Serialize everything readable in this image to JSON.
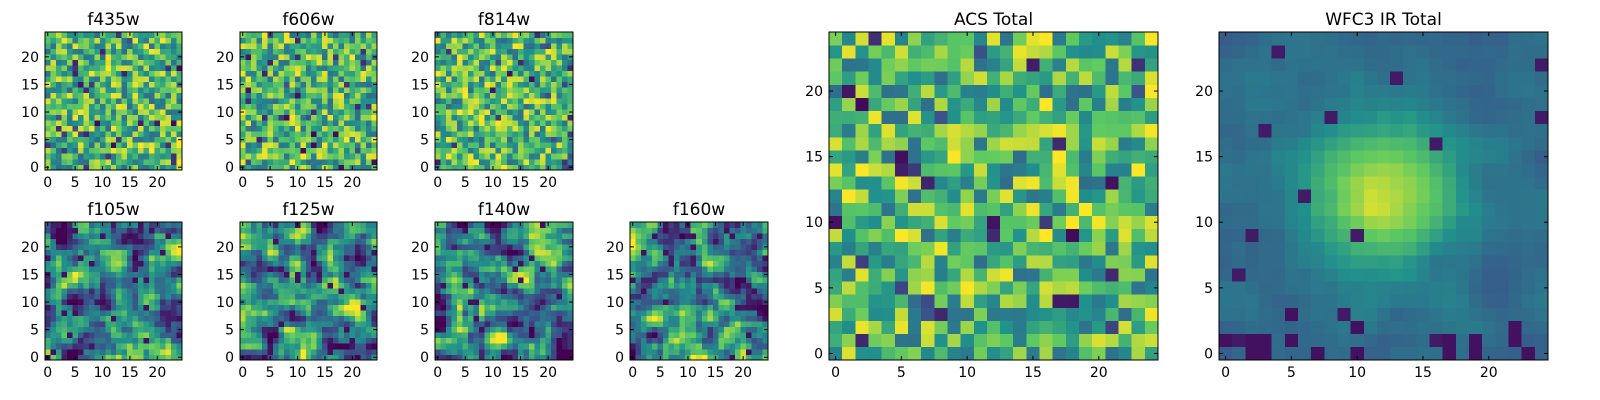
{
  "chart_data": {
    "type": "heatmap",
    "colormap": "viridis",
    "grid": false,
    "value_range": [
      0,
      1
    ],
    "seed_note": "pixel values approximated (noise images)",
    "panels": [
      {
        "id": "f435w",
        "title": "f435w",
        "size": 25,
        "xticks": [
          0,
          5,
          10,
          15,
          20
        ],
        "yticks": [
          0,
          5,
          10,
          15,
          20
        ],
        "pattern": "noise",
        "seed": 11
      },
      {
        "id": "f606w",
        "title": "f606w",
        "size": 25,
        "xticks": [
          0,
          5,
          10,
          15,
          20
        ],
        "yticks": [
          0,
          5,
          10,
          15,
          20
        ],
        "pattern": "noise",
        "seed": 23
      },
      {
        "id": "f814w",
        "title": "f814w",
        "size": 25,
        "xticks": [
          0,
          5,
          10,
          15,
          20
        ],
        "yticks": [
          0,
          5,
          10,
          15,
          20
        ],
        "pattern": "noise",
        "seed": 37
      },
      {
        "id": "f105w",
        "title": "f105w",
        "size": 25,
        "xticks": [
          0,
          5,
          10,
          15,
          20
        ],
        "yticks": [
          0,
          5,
          10,
          15,
          20
        ],
        "pattern": "smooth",
        "seed": 41
      },
      {
        "id": "f125w",
        "title": "f125w",
        "size": 25,
        "xticks": [
          0,
          5,
          10,
          15,
          20
        ],
        "yticks": [
          0,
          5,
          10,
          15,
          20
        ],
        "pattern": "smooth",
        "seed": 53
      },
      {
        "id": "f140w",
        "title": "f140w",
        "size": 25,
        "xticks": [
          0,
          5,
          10,
          15,
          20
        ],
        "yticks": [
          0,
          5,
          10,
          15,
          20
        ],
        "pattern": "smooth",
        "seed": 67
      },
      {
        "id": "f160w",
        "title": "f160w",
        "size": 25,
        "xticks": [
          0,
          5,
          10,
          15,
          20
        ],
        "yticks": [
          0,
          5,
          10,
          15,
          20
        ],
        "pattern": "smooth",
        "seed": 79
      },
      {
        "id": "acs_total",
        "title": "ACS Total",
        "size": 25,
        "xticks": [
          0,
          5,
          10,
          15,
          20
        ],
        "yticks": [
          0,
          5,
          10,
          15,
          20
        ],
        "pattern": "noise",
        "seed": 97
      },
      {
        "id": "wfc3_ir_total",
        "title": "WFC3 IR Total",
        "size": 25,
        "xticks": [
          0,
          5,
          10,
          15,
          20
        ],
        "yticks": [
          0,
          5,
          10,
          15,
          20
        ],
        "pattern": "blob",
        "seed": 101
      }
    ]
  },
  "colors": {
    "viridis": [
      "#440154",
      "#3b528b",
      "#21918c",
      "#5ec962",
      "#fde725"
    ]
  }
}
